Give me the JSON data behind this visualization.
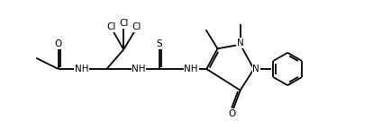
{
  "bg": "#ffffff",
  "lw": 1.3,
  "fs": 7.5,
  "fig_w": 4.34,
  "fig_h": 1.54,
  "dpi": 100,
  "xlim": [
    -0.2,
    10.6
  ],
  "ylim": [
    0.3,
    4.7
  ]
}
